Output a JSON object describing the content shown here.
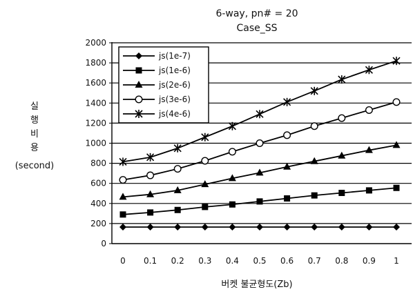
{
  "chart_data": {
    "type": "line",
    "title": "6-way, pn# = 20",
    "subtitle": "Case_SS",
    "xlabel": "버켓 불균형도(Zb)",
    "ylabel_lines": [
      "실",
      "행",
      "비",
      "용",
      "(second)"
    ],
    "x": [
      0,
      0.1,
      0.2,
      0.3,
      0.4,
      0.5,
      0.6,
      0.7,
      0.8,
      0.9,
      1
    ],
    "x_tick_labels": [
      "0",
      "0.1",
      "0.2",
      "0.3",
      "0.4",
      "0.5",
      "0.6",
      "0.7",
      "0.8",
      "0.9",
      "1"
    ],
    "ylim": [
      0,
      2000
    ],
    "y_ticks": [
      0,
      200,
      400,
      600,
      800,
      1000,
      1200,
      1400,
      1600,
      1800,
      2000
    ],
    "grid": "horizontal",
    "legend_position": "top-left",
    "series": [
      {
        "name": "js(1e-7)",
        "marker": "diamond",
        "values": [
          165,
          165,
          165,
          165,
          165,
          165,
          165,
          165,
          165,
          165,
          165
        ]
      },
      {
        "name": "js(1e-6)",
        "marker": "square",
        "values": [
          290,
          310,
          335,
          365,
          390,
          420,
          450,
          480,
          505,
          530,
          555
        ]
      },
      {
        "name": "js(2e-6)",
        "marker": "triangle",
        "values": [
          465,
          490,
          530,
          590,
          650,
          705,
          765,
          820,
          875,
          930,
          980
        ]
      },
      {
        "name": "js(3e-6)",
        "marker": "circle-open",
        "values": [
          635,
          680,
          745,
          825,
          915,
          1000,
          1080,
          1170,
          1250,
          1330,
          1410
        ]
      },
      {
        "name": "js(4e-6)",
        "marker": "star",
        "values": [
          815,
          860,
          950,
          1060,
          1170,
          1290,
          1410,
          1520,
          1635,
          1730,
          1820
        ]
      }
    ]
  }
}
